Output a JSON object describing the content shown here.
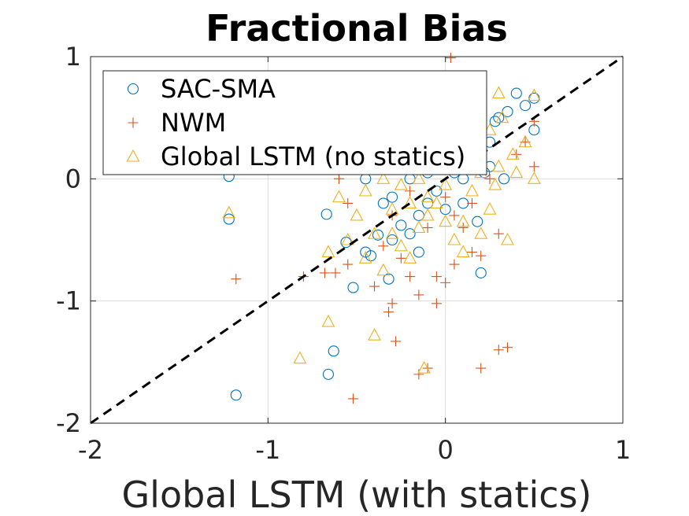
{
  "chart_data": {
    "type": "scatter",
    "title": "Fractional Bias",
    "xlabel": "Global LSTM (with statics)",
    "ylabel": "",
    "xlim": [
      -2,
      1
    ],
    "ylim": [
      -2,
      1
    ],
    "xticks": [
      -2,
      -1,
      0,
      1
    ],
    "yticks": [
      -2,
      -1,
      0,
      1
    ],
    "xtick_labels": [
      "-2",
      "-1",
      "0",
      "1"
    ],
    "ytick_labels": [
      "-2",
      "-1",
      "0",
      "1"
    ],
    "grid": true,
    "legend_position": "top-left",
    "reference_line": {
      "style": "dashed",
      "color": "#000000",
      "from": [
        -2,
        -2
      ],
      "to": [
        1,
        1
      ]
    },
    "series": [
      {
        "name": "SAC-SMA",
        "marker": "circle",
        "color": "#0072bd",
        "points": [
          [
            -1.22,
            0.02
          ],
          [
            -1.22,
            -0.33
          ],
          [
            -1.18,
            -1.77
          ],
          [
            -0.67,
            -0.29
          ],
          [
            -0.66,
            -1.6
          ],
          [
            -0.63,
            -1.41
          ],
          [
            -0.56,
            -0.52
          ],
          [
            -0.52,
            -0.89
          ],
          [
            -0.45,
            -0.6
          ],
          [
            -0.42,
            -0.63
          ],
          [
            -0.38,
            -0.46
          ],
          [
            -0.32,
            -0.82
          ],
          [
            -0.3,
            -0.5
          ],
          [
            -0.25,
            -0.38
          ],
          [
            -0.2,
            -0.45
          ],
          [
            -0.15,
            -0.3
          ],
          [
            -0.1,
            -0.2
          ],
          [
            -0.05,
            -0.1
          ],
          [
            0.0,
            0.1
          ],
          [
            0.05,
            0.05
          ],
          [
            0.1,
            -0.2
          ],
          [
            0.15,
            0.2
          ],
          [
            0.2,
            -0.77
          ],
          [
            0.25,
            0.3
          ],
          [
            0.28,
            0.47
          ],
          [
            0.3,
            0.5
          ],
          [
            0.35,
            0.55
          ],
          [
            0.4,
            0.7
          ],
          [
            0.45,
            0.6
          ],
          [
            0.5,
            0.4
          ],
          [
            0.5,
            0.66
          ],
          [
            0.33,
            0.0
          ],
          [
            0.25,
            0.1
          ],
          [
            -0.45,
            0.0
          ],
          [
            -0.3,
            -0.15
          ],
          [
            -0.2,
            0.0
          ],
          [
            0.1,
            0.0
          ],
          [
            0.0,
            -0.25
          ],
          [
            -0.1,
            0.05
          ],
          [
            0.05,
            0.3
          ],
          [
            -0.15,
            -0.6
          ],
          [
            0.18,
            -0.35
          ],
          [
            -0.35,
            -0.2
          ],
          [
            0.22,
            0.05
          ]
        ]
      },
      {
        "name": "NWM",
        "marker": "plus",
        "color": "#d95319",
        "points": [
          [
            -1.18,
            -0.82
          ],
          [
            -0.8,
            -0.8
          ],
          [
            -0.68,
            -0.77
          ],
          [
            -0.62,
            -0.77
          ],
          [
            -0.55,
            -0.7
          ],
          [
            -0.52,
            -1.8
          ],
          [
            -0.4,
            -0.88
          ],
          [
            -0.32,
            -1.09
          ],
          [
            -0.3,
            -1.02
          ],
          [
            -0.28,
            -1.33
          ],
          [
            -0.2,
            -0.8
          ],
          [
            -0.15,
            -0.95
          ],
          [
            -0.15,
            -1.6
          ],
          [
            -0.1,
            -1.55
          ],
          [
            -0.05,
            -0.8
          ],
          [
            -0.05,
            -1.02
          ],
          [
            0.0,
            -0.85
          ],
          [
            0.03,
            0.99
          ],
          [
            0.05,
            -0.7
          ],
          [
            0.1,
            -0.4
          ],
          [
            0.15,
            -0.6
          ],
          [
            0.2,
            -0.63
          ],
          [
            0.2,
            -1.55
          ],
          [
            0.3,
            -1.4
          ],
          [
            0.35,
            -1.38
          ],
          [
            0.3,
            -0.45
          ],
          [
            0.5,
            0.1
          ],
          [
            0.5,
            0.47
          ],
          [
            0.45,
            0.3
          ],
          [
            -0.55,
            -0.2
          ],
          [
            -0.6,
            0.0
          ],
          [
            -0.45,
            0.1
          ],
          [
            -0.3,
            -0.3
          ],
          [
            -0.2,
            -0.1
          ],
          [
            0.0,
            -0.15
          ],
          [
            0.1,
            0.15
          ],
          [
            0.2,
            0.25
          ],
          [
            0.25,
            0.0
          ],
          [
            0.4,
            0.2
          ],
          [
            -0.1,
            0.3
          ],
          [
            -0.35,
            -0.55
          ],
          [
            0.15,
            -0.2
          ],
          [
            -0.1,
            -0.4
          ],
          [
            -0.25,
            -0.65
          ],
          [
            0.05,
            -0.3
          ]
        ]
      },
      {
        "name": "Global LSTM (no statics)",
        "marker": "triangle",
        "color": "#edb120",
        "points": [
          [
            -1.22,
            -0.28
          ],
          [
            -0.82,
            -1.47
          ],
          [
            -0.66,
            -1.17
          ],
          [
            -0.66,
            -0.6
          ],
          [
            -0.55,
            -0.5
          ],
          [
            -0.5,
            -0.3
          ],
          [
            -0.45,
            -0.65
          ],
          [
            -0.4,
            -1.28
          ],
          [
            -0.35,
            -0.75
          ],
          [
            -0.3,
            -0.45
          ],
          [
            -0.25,
            -0.55
          ],
          [
            -0.2,
            -0.65
          ],
          [
            -0.15,
            -0.4
          ],
          [
            -0.12,
            -1.55
          ],
          [
            -0.1,
            -0.3
          ],
          [
            -0.05,
            -0.2
          ],
          [
            0.0,
            -0.35
          ],
          [
            0.05,
            -0.5
          ],
          [
            0.1,
            -0.6
          ],
          [
            0.15,
            -0.1
          ],
          [
            0.2,
            0.05
          ],
          [
            0.25,
            -0.25
          ],
          [
            0.3,
            0.1
          ],
          [
            0.35,
            -0.5
          ],
          [
            0.4,
            0.05
          ],
          [
            0.45,
            0.3
          ],
          [
            0.5,
            0.0
          ],
          [
            0.3,
            0.7
          ],
          [
            0.5,
            0.68
          ],
          [
            0.32,
            0.5
          ],
          [
            -0.45,
            -0.1
          ],
          [
            -0.35,
            0.0
          ],
          [
            -0.25,
            -0.05
          ],
          [
            -0.15,
            0.0
          ],
          [
            -0.05,
            0.1
          ],
          [
            0.05,
            0.15
          ],
          [
            0.15,
            0.3
          ],
          [
            0.25,
            0.4
          ],
          [
            -0.1,
            -0.15
          ],
          [
            0.0,
            -0.05
          ],
          [
            -0.3,
            -0.25
          ],
          [
            0.1,
            -0.35
          ],
          [
            -0.2,
            -0.2
          ],
          [
            0.2,
            -0.45
          ],
          [
            -0.4,
            -0.45
          ],
          [
            0.38,
            0.2
          ],
          [
            0.28,
            -0.05
          ],
          [
            -0.6,
            -0.15
          ]
        ]
      }
    ]
  }
}
